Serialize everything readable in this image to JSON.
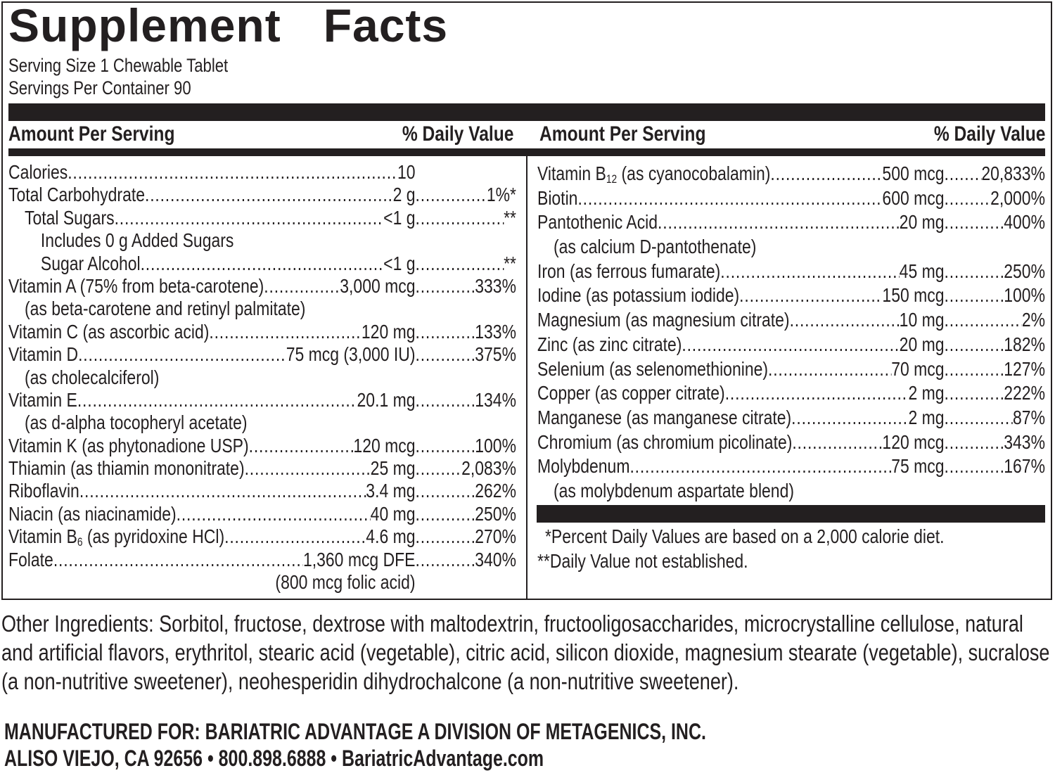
{
  "label": {
    "title_word1": "Supplement",
    "title_word2": "Facts",
    "serving_size": "Serving Size 1 Chewable Tablet",
    "servings_per_container": "Servings Per Container 90",
    "column_header_amount": "Amount Per Serving",
    "column_header_dv": "% Daily Value"
  },
  "left_column": [
    {
      "name": "Calories",
      "amount": "10",
      "dv": "",
      "indent": 0
    },
    {
      "name": "Total Carbohydrate",
      "amount": "2 g",
      "dv": "1%*",
      "indent": 0
    },
    {
      "name": "Total Sugars",
      "amount": "<1 g",
      "dv": "**",
      "indent": 1
    },
    {
      "name": "Includes 0 g Added Sugars",
      "amount": "",
      "dv": "",
      "indent": 2,
      "nodots": true
    },
    {
      "name": "Sugar Alcohol",
      "amount": "<1 g",
      "dv": "**",
      "indent": 2
    },
    {
      "name": "Vitamin A (75% from beta-carotene)",
      "amount": "3,000 mcg",
      "dv": "333%",
      "indent": 0
    },
    {
      "name": "(as beta-carotene and retinyl palmitate)",
      "amount": "",
      "dv": "",
      "indent": 1,
      "nodots": true
    },
    {
      "name": "Vitamin C (as ascorbic acid)",
      "amount": "120 mg",
      "dv": "133%",
      "indent": 0
    },
    {
      "name": "Vitamin D",
      "amount": "75 mcg (3,000 IU)",
      "dv": "375%",
      "indent": 0
    },
    {
      "name": "(as cholecalciferol)",
      "amount": "",
      "dv": "",
      "indent": 1,
      "nodots": true
    },
    {
      "name": "Vitamin E",
      "amount": "20.1 mg",
      "dv": "134%",
      "indent": 0
    },
    {
      "name": "(as d-alpha tocopheryl acetate)",
      "amount": "",
      "dv": "",
      "indent": 1,
      "nodots": true
    },
    {
      "name": "Vitamin K (as phytonadione USP)",
      "amount": "120 mcg",
      "dv": "100%",
      "indent": 0
    },
    {
      "name": "Thiamin (as thiamin mononitrate)",
      "amount": "25 mg",
      "dv": "2,083%",
      "indent": 0
    },
    {
      "name": "Riboflavin",
      "amount": "3.4 mg",
      "dv": "262%",
      "indent": 0
    },
    {
      "name": "Niacin (as niacinamide)",
      "amount": "40 mg",
      "dv": "250%",
      "indent": 0
    },
    {
      "name": "Vitamin B6 (as pyridoxine HCl)",
      "amount": "4.6 mg",
      "dv": "270%",
      "indent": 0
    },
    {
      "name": "Folate",
      "amount": "1,360 mcg DFE",
      "dv": "340%",
      "indent": 0
    },
    {
      "name": "",
      "amount": "(800 mcg folic acid)",
      "dv": "",
      "indent": 0,
      "nodots": true
    }
  ],
  "right_column": [
    {
      "name": "Vitamin B12 (as cyanocobalamin)",
      "amount": "500 mcg",
      "dv": "20,833%",
      "indent": 0
    },
    {
      "name": "Biotin",
      "amount": "600 mcg",
      "dv": "2,000%",
      "indent": 0
    },
    {
      "name": "Pantothenic Acid",
      "amount": "20 mg",
      "dv": "400%",
      "indent": 0
    },
    {
      "name": "(as calcium D-pantothenate)",
      "amount": "",
      "dv": "",
      "indent": 1,
      "nodots": true
    },
    {
      "name": "Iron (as ferrous fumarate)",
      "amount": "45 mg",
      "dv": "250%",
      "indent": 0
    },
    {
      "name": "Iodine (as potassium iodide)",
      "amount": "150 mcg",
      "dv": "100%",
      "indent": 0
    },
    {
      "name": "Magnesium (as magnesium citrate)",
      "amount": "10 mg",
      "dv": "2%",
      "indent": 0
    },
    {
      "name": "Zinc (as zinc citrate)",
      "amount": "20 mg",
      "dv": "182%",
      "indent": 0
    },
    {
      "name": "Selenium (as selenomethionine)",
      "amount": "70 mcg",
      "dv": "127%",
      "indent": 0
    },
    {
      "name": "Copper (as copper citrate)",
      "amount": "2 mg",
      "dv": "222%",
      "indent": 0
    },
    {
      "name": "Manganese (as manganese citrate)",
      "amount": "2 mg",
      "dv": "87%",
      "indent": 0
    },
    {
      "name": "Chromium (as chromium picolinate)",
      "amount": "120 mcg",
      "dv": "343%",
      "indent": 0
    },
    {
      "name": "Molybdenum",
      "amount": "75 mcg",
      "dv": "167%",
      "indent": 0
    },
    {
      "name": "(as molybdenum aspartate blend)",
      "amount": "",
      "dv": "",
      "indent": 1,
      "nodots": true
    }
  ],
  "footnotes": {
    "percent_dv": "*Percent Daily Values are based on a 2,000 calorie diet.",
    "not_established": "**Daily Value not established."
  },
  "other_ingredients": "Other Ingredients: Sorbitol, fructose, dextrose with maltodextrin, fructooligosaccharides, microcrystalline cellulose, natural and artificial flavors, erythritol, stearic acid (vegetable), citric acid, silicon dioxide, magnesium stearate (vegetable), sucralose (a non-nutritive sweetener), neohesperidin dihydrochalcone (a non-nutritive sweetener).",
  "manufacturer": {
    "line1": "MANUFACTURED FOR: BARIATRIC ADVANTAGE A DIVISION OF METAGENICS, INC.",
    "line2": "ALISO VIEJO, CA 92656 • 800.898.6888 • BariatricAdvantage.com"
  },
  "colors": {
    "ink": "#231f20",
    "background": "#ffffff"
  }
}
